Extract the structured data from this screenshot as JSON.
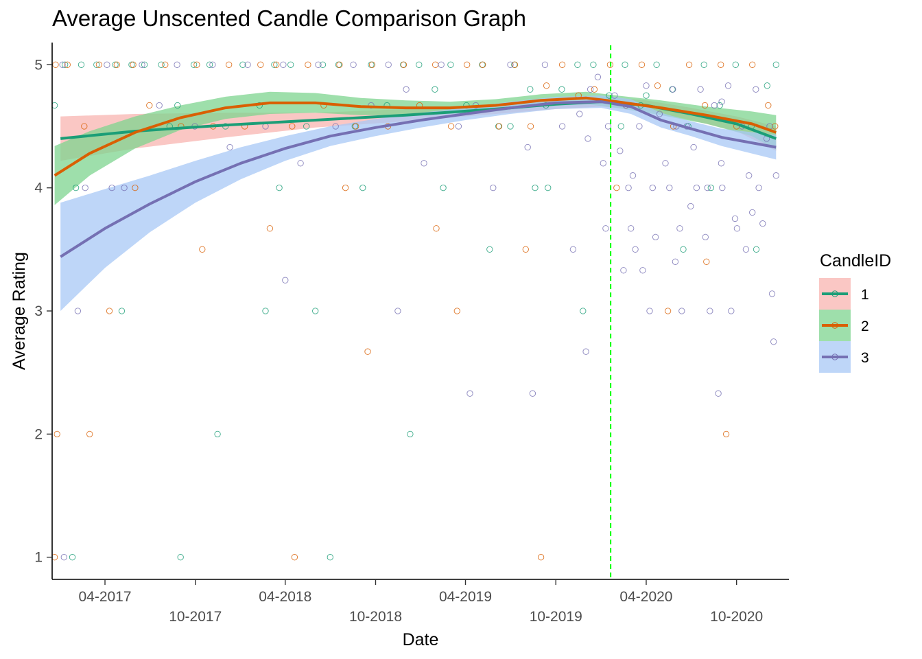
{
  "chart_data": {
    "type": "scatter",
    "title": "Average Unscented Candle Comparison Graph",
    "xlabel": "Date",
    "ylabel": "Average Rating",
    "x_range": [
      "2016-12-15",
      "2021-01-15"
    ],
    "ylim": [
      0.82,
      5.18
    ],
    "y_ticks": [
      1,
      2,
      3,
      4,
      5
    ],
    "x_ticks_upper": [
      {
        "date": "2017-04-01",
        "label": "04-2017"
      },
      {
        "date": "2018-04-01",
        "label": "04-2018"
      },
      {
        "date": "2019-04-01",
        "label": "04-2019"
      },
      {
        "date": "2020-04-01",
        "label": "04-2020"
      }
    ],
    "x_ticks_lower": [
      {
        "date": "2017-10-01",
        "label": "10-2017"
      },
      {
        "date": "2018-10-01",
        "label": "10-2018"
      },
      {
        "date": "2019-10-01",
        "label": "10-2019"
      },
      {
        "date": "2020-10-01",
        "label": "10-2020"
      }
    ],
    "grid": false,
    "legend": {
      "title": "CandleID",
      "position": "right"
    },
    "vline": {
      "date": "2020-01-20",
      "color": "#00ff00",
      "style": "dashed"
    },
    "series": [
      {
        "name": "1",
        "line_color": "#1b9e77",
        "band_color": "#f8b4b0",
        "smooth": [
          [
            "2017-01-01",
            4.4
          ],
          [
            "2017-06-01",
            4.46
          ],
          [
            "2017-12-01",
            4.51
          ],
          [
            "2018-06-01",
            4.55
          ],
          [
            "2018-12-01",
            4.59
          ],
          [
            "2019-06-01",
            4.64
          ],
          [
            "2019-10-01",
            4.68
          ],
          [
            "2020-01-01",
            4.7
          ],
          [
            "2020-04-01",
            4.67
          ],
          [
            "2020-07-01",
            4.6
          ],
          [
            "2020-10-01",
            4.52
          ],
          [
            "2020-12-20",
            4.4
          ]
        ],
        "band_halfwidth": [
          0.18,
          0.14,
          0.1,
          0.06,
          0.05,
          0.04,
          0.04,
          0.04,
          0.04,
          0.05,
          0.06,
          0.1
        ]
      },
      {
        "name": "2",
        "line_color": "#d95f02",
        "band_color": "#7dd48f",
        "smooth": [
          [
            "2016-12-20",
            4.1
          ],
          [
            "2017-03-01",
            4.28
          ],
          [
            "2017-06-01",
            4.45
          ],
          [
            "2017-09-01",
            4.57
          ],
          [
            "2017-12-01",
            4.65
          ],
          [
            "2018-03-01",
            4.69
          ],
          [
            "2018-06-01",
            4.69
          ],
          [
            "2018-09-01",
            4.66
          ],
          [
            "2018-12-01",
            4.65
          ],
          [
            "2019-03-01",
            4.65
          ],
          [
            "2019-06-01",
            4.67
          ],
          [
            "2019-09-01",
            4.71
          ],
          [
            "2019-12-01",
            4.73
          ],
          [
            "2020-02-01",
            4.7
          ],
          [
            "2020-05-01",
            4.65
          ],
          [
            "2020-08-01",
            4.59
          ],
          [
            "2020-11-01",
            4.52
          ],
          [
            "2020-12-20",
            4.45
          ]
        ],
        "band_halfwidth": [
          0.24,
          0.18,
          0.13,
          0.1,
          0.09,
          0.09,
          0.08,
          0.07,
          0.06,
          0.05,
          0.05,
          0.05,
          0.05,
          0.05,
          0.06,
          0.07,
          0.1,
          0.14
        ]
      },
      {
        "name": "3",
        "line_color": "#7570b3",
        "band_color": "#a8c8f5",
        "smooth": [
          [
            "2017-01-01",
            3.44
          ],
          [
            "2017-04-01",
            3.67
          ],
          [
            "2017-07-01",
            3.87
          ],
          [
            "2017-10-01",
            4.05
          ],
          [
            "2018-01-01",
            4.2
          ],
          [
            "2018-04-01",
            4.32
          ],
          [
            "2018-07-01",
            4.42
          ],
          [
            "2018-10-01",
            4.49
          ],
          [
            "2019-01-01",
            4.55
          ],
          [
            "2019-04-01",
            4.6
          ],
          [
            "2019-07-01",
            4.65
          ],
          [
            "2019-10-01",
            4.69
          ],
          [
            "2020-01-01",
            4.7
          ],
          [
            "2020-03-01",
            4.66
          ],
          [
            "2020-05-01",
            4.55
          ],
          [
            "2020-07-01",
            4.48
          ],
          [
            "2020-09-01",
            4.41
          ],
          [
            "2020-12-20",
            4.33
          ]
        ],
        "band_halfwidth": [
          0.44,
          0.32,
          0.23,
          0.17,
          0.13,
          0.1,
          0.08,
          0.07,
          0.06,
          0.05,
          0.05,
          0.05,
          0.05,
          0.06,
          0.06,
          0.06,
          0.07,
          0.1
        ]
      }
    ],
    "points": [
      {
        "series": "1",
        "x": [
          "2016-12-20",
          "2017-01-10",
          "2017-02-12",
          "2017-03-15",
          "2017-04-22",
          "2017-05-25",
          "2017-06-20",
          "2017-07-24",
          "2017-08-26",
          "2017-09-28",
          "2017-10-30",
          "2017-12-01",
          "2018-01-05",
          "2018-02-08",
          "2018-03-10",
          "2018-04-12",
          "2018-05-14",
          "2018-06-16",
          "2018-07-18",
          "2018-08-20",
          "2018-09-22",
          "2018-10-24",
          "2018-11-26",
          "2018-12-28",
          "2019-01-29",
          "2019-03-02",
          "2019-04-03",
          "2019-05-05",
          "2019-06-07",
          "2019-07-09",
          "2019-08-10",
          "2019-09-11",
          "2019-10-13",
          "2019-11-14",
          "2019-12-16",
          "2020-01-17",
          "2020-02-18",
          "2020-03-21",
          "2020-04-22",
          "2020-05-24",
          "2020-06-25",
          "2020-07-27",
          "2020-08-28",
          "2020-09-29",
          "2020-10-31",
          "2020-12-02",
          "2020-12-20",
          "2017-02-01",
          "2017-08-10",
          "2018-03-20",
          "2018-09-05",
          "2019-02-15",
          "2019-08-20",
          "2020-02-10",
          "2020-08-10",
          "2017-05-05",
          "2018-06-01",
          "2019-05-20",
          "2020-06-15",
          "2017-11-15",
          "2018-12-10",
          "2019-11-25",
          "2020-11-10",
          "2017-01-25",
          "2018-07-01",
          "2019-07-01",
          "2020-04-01",
          "2017-09-01",
          "2018-02-20",
          "2019-09-15"
        ],
        "y": [
          4.67,
          5,
          5,
          5,
          5,
          5,
          5,
          5,
          4.67,
          5,
          5,
          4.5,
          5,
          4.67,
          5,
          5,
          4.5,
          5,
          5,
          4.5,
          5,
          4.67,
          5,
          5,
          4.8,
          5,
          4.67,
          5,
          4.5,
          5,
          4.8,
          4.67,
          4.8,
          5,
          5,
          4.75,
          5,
          4.67,
          5,
          4.8,
          4.5,
          5,
          4.67,
          5,
          4.5,
          4.83,
          5,
          4,
          4.5,
          4,
          4,
          4,
          4,
          4.5,
          4,
          3,
          3,
          3.5,
          3.5,
          2,
          2,
          3,
          3.5,
          1,
          1,
          4.5,
          4.75,
          1,
          3,
          4
        ]
      },
      {
        "series": "2",
        "x": [
          "2016-12-22",
          "2017-01-15",
          "2017-02-18",
          "2017-03-20",
          "2017-04-25",
          "2017-05-28",
          "2017-06-30",
          "2017-08-01",
          "2017-09-02",
          "2017-10-04",
          "2017-11-06",
          "2017-12-08",
          "2018-01-09",
          "2018-02-10",
          "2018-03-14",
          "2018-04-15",
          "2018-05-17",
          "2018-06-18",
          "2018-07-20",
          "2018-08-22",
          "2018-09-24",
          "2018-10-26",
          "2018-11-27",
          "2018-12-29",
          "2019-01-30",
          "2019-03-03",
          "2019-04-04",
          "2019-05-06",
          "2019-06-08",
          "2019-07-10",
          "2019-08-11",
          "2019-09-12",
          "2019-10-14",
          "2019-11-16",
          "2019-12-18",
          "2020-01-19",
          "2020-02-20",
          "2020-03-23",
          "2020-04-24",
          "2020-05-26",
          "2020-06-27",
          "2020-07-29",
          "2020-08-30",
          "2020-10-01",
          "2020-11-02",
          "2020-12-04",
          "2020-12-18",
          "2016-12-25",
          "2017-03-01",
          "2017-06-01",
          "2017-10-15",
          "2018-03-01",
          "2018-08-01",
          "2019-02-01",
          "2019-08-01",
          "2020-02-01",
          "2020-08-01",
          "2017-04-10",
          "2018-09-15",
          "2019-03-15",
          "2020-05-15",
          "2016-12-20",
          "2018-04-20",
          "2019-09-01",
          "2020-09-10"
        ],
        "y": [
          5,
          5,
          4.5,
          5,
          5,
          5,
          4.67,
          5,
          4.5,
          5,
          4.5,
          5,
          4.5,
          5,
          5,
          4.5,
          5,
          4.67,
          5,
          4.5,
          5,
          4.5,
          5,
          4.67,
          5,
          4.5,
          5,
          5,
          4.5,
          5,
          4.5,
          4.83,
          5,
          4.75,
          4.8,
          5,
          4.67,
          5,
          4.83,
          4.5,
          5,
          4.67,
          5,
          4.5,
          5,
          4.67,
          4.5,
          2,
          2,
          4,
          3.5,
          3.67,
          4,
          3.67,
          3.5,
          4,
          3.4,
          3,
          2.67,
          3,
          3,
          1,
          1,
          1,
          2
        ]
      },
      {
        "series": "3",
        "x": [
          "2017-01-05",
          "2017-02-20",
          "2017-04-05",
          "2017-05-10",
          "2017-06-15",
          "2017-07-20",
          "2017-08-25",
          "2017-09-30",
          "2017-11-05",
          "2017-12-10",
          "2018-01-15",
          "2018-02-20",
          "2018-03-28",
          "2018-05-02",
          "2018-06-07",
          "2018-07-12",
          "2018-08-17",
          "2018-09-22",
          "2018-10-27",
          "2018-12-02",
          "2019-01-07",
          "2019-02-11",
          "2019-03-18",
          "2019-04-22",
          "2019-05-27",
          "2019-07-01",
          "2019-08-05",
          "2019-09-09",
          "2019-10-14",
          "2019-11-18",
          "2019-12-10",
          "2019-12-25",
          "2020-01-05",
          "2020-01-15",
          "2020-01-28",
          "2020-02-08",
          "2020-02-20",
          "2020-03-05",
          "2020-03-18",
          "2020-04-01",
          "2020-04-14",
          "2020-04-28",
          "2020-05-10",
          "2020-05-25",
          "2020-06-08",
          "2020-06-22",
          "2020-07-06",
          "2020-07-20",
          "2020-08-03",
          "2020-08-17",
          "2020-08-31",
          "2020-09-14",
          "2020-09-28",
          "2020-10-12",
          "2020-10-26",
          "2020-11-09",
          "2020-11-23",
          "2020-12-07",
          "2020-12-20",
          "2019-12-05",
          "2020-01-10",
          "2020-02-25",
          "2020-03-25",
          "2020-04-20",
          "2020-05-30",
          "2020-06-30",
          "2020-07-30",
          "2020-08-25",
          "2020-09-20",
          "2020-10-20",
          "2020-11-15",
          "2020-12-12",
          "2019-11-05",
          "2020-02-15",
          "2020-03-10",
          "2020-04-08",
          "2020-05-18",
          "2020-06-12",
          "2020-07-12",
          "2020-08-08",
          "2020-09-02",
          "2020-10-02",
          "2020-11-02",
          "2020-12-15",
          "2017-01-08",
          "2017-02-05",
          "2017-04-15",
          "2018-04-01",
          "2018-11-15",
          "2019-04-10",
          "2019-08-15",
          "2019-12-01",
          "2020-03-01",
          "2020-06-01",
          "2020-09-01",
          "2020-12-01"
        ],
        "y": [
          5,
          4,
          5,
          4,
          5,
          4.67,
          5,
          4.5,
          5,
          4.33,
          5,
          4.5,
          5,
          4.2,
          5,
          4.5,
          5,
          4.67,
          5,
          4.8,
          4.2,
          5,
          4.5,
          4.67,
          4,
          5,
          4.33,
          5,
          4.5,
          4.6,
          4.8,
          4.9,
          4.2,
          4.5,
          4.75,
          4.3,
          4.67,
          4.1,
          4.5,
          4.83,
          4.0,
          4.6,
          4.2,
          4.8,
          3.67,
          4.5,
          4.33,
          4.8,
          4.0,
          4.67,
          4.2,
          4.83,
          3.75,
          4.5,
          4.1,
          4.8,
          3.71,
          4.5,
          4.1,
          4.4,
          3.67,
          4.0,
          3.33,
          3.6,
          3.4,
          3.85,
          3.6,
          2.33,
          3.0,
          3.5,
          4.0,
          3.14,
          3.5,
          3.33,
          3.5,
          3.0,
          4.0,
          3.0,
          4.0,
          3.0,
          4.0,
          3.67,
          3.8,
          2.75,
          1,
          3,
          4,
          3.25,
          3,
          2.33,
          2.33,
          2.67,
          3.67,
          4.5,
          4.7,
          4.4
        ]
      }
    ]
  }
}
